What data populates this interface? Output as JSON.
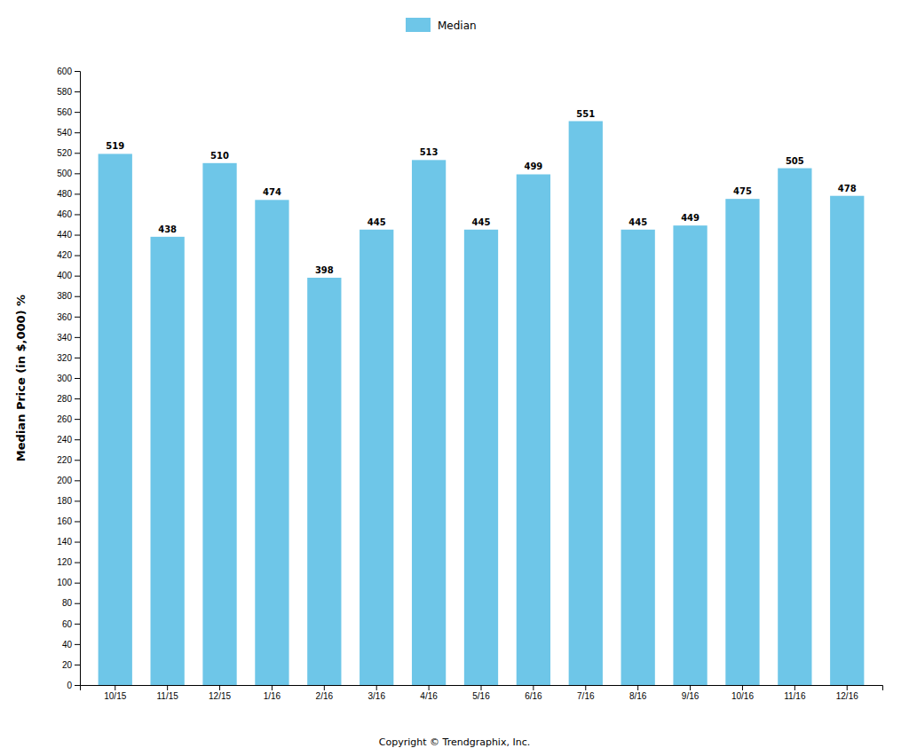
{
  "chart_data": {
    "type": "bar",
    "ylabel": "Median Price (in $,000) %",
    "categories": [
      "10/15",
      "11/15",
      "12/15",
      "1/16",
      "2/16",
      "3/16",
      "4/16",
      "5/16",
      "6/16",
      "7/16",
      "8/16",
      "9/16",
      "10/16",
      "11/16",
      "12/16"
    ],
    "series": [
      {
        "name": "Median",
        "color": "#6EC6E8",
        "values": [
          519,
          438,
          510,
          474,
          398,
          445,
          513,
          445,
          499,
          551,
          445,
          449,
          475,
          505,
          478
        ]
      }
    ],
    "ylim": [
      0,
      600
    ],
    "yticks": [
      0,
      20,
      40,
      60,
      80,
      100,
      120,
      140,
      160,
      180,
      200,
      220,
      240,
      260,
      280,
      300,
      320,
      340,
      360,
      380,
      400,
      420,
      440,
      460,
      480,
      500,
      520,
      540,
      560,
      580,
      600
    ],
    "grid": false,
    "legend": "top",
    "data_labels": true,
    "annotations": [
      "Copyright © Trendgraphix, Inc."
    ]
  }
}
